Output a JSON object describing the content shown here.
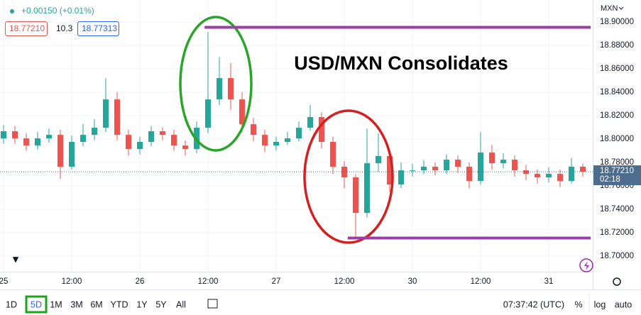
{
  "header": {
    "change": "+0.00150 (+0.01%)",
    "bid": "18.77210",
    "spread": "10.3",
    "ask": "18.77313"
  },
  "toolbar": {
    "ranges": [
      "1D",
      "5D",
      "1M",
      "3M",
      "6M",
      "YTD",
      "1Y",
      "5Y",
      "All"
    ],
    "active": 1,
    "clock": "07:37:42 (UTC)",
    "options": [
      "%",
      "log",
      "auto"
    ]
  },
  "chart_data": {
    "type": "candlestick",
    "currency": "MXN",
    "annotation": "USD/MXN Consolidates",
    "up_color": "#26a69a",
    "down_color": "#ef5350",
    "grid": true,
    "x": [
      0,
      2,
      4,
      6,
      8,
      10,
      12,
      14,
      16,
      18,
      20,
      22,
      24,
      26,
      28,
      30,
      32,
      34,
      36,
      38,
      40,
      42,
      44,
      46,
      48,
      50,
      52,
      54,
      56,
      58,
      60,
      62,
      64,
      66,
      68,
      70,
      72,
      74,
      76,
      78,
      80,
      82,
      84,
      86,
      88,
      90,
      92,
      94,
      96,
      98,
      100,
      102
    ],
    "open": [
      18.8005,
      18.8067,
      18.8006,
      18.7945,
      18.8006,
      18.8036,
      18.7764,
      18.7976,
      18.8036,
      18.8097,
      18.8339,
      18.8036,
      18.7915,
      18.7976,
      18.8067,
      18.8036,
      18.7945,
      18.7915,
      18.8097,
      18.8339,
      18.8521,
      18.8339,
      18.8127,
      18.8036,
      18.7945,
      18.7976,
      18.8006,
      18.8097,
      18.8188,
      18.7976,
      18.7764,
      18.7673,
      18.737,
      18.7794,
      18.7855,
      18.7612,
      18.7733,
      18.7733,
      18.7764,
      18.7733,
      18.7824,
      18.7764,
      18.7642,
      18.7885,
      18.7794,
      18.7824,
      18.7733,
      18.7703,
      18.7673,
      18.7703,
      18.7642,
      18.7764
    ],
    "high": [
      18.812,
      18.811,
      18.805,
      18.806,
      18.809,
      18.808,
      18.803,
      18.813,
      18.817,
      18.852,
      18.84,
      18.808,
      18.802,
      18.811,
      18.81,
      18.808,
      18.799,
      18.815,
      18.8915,
      18.87,
      18.865,
      18.84,
      18.818,
      18.808,
      18.802,
      18.806,
      18.815,
      18.829,
      18.823,
      18.802,
      18.781,
      18.77,
      18.809,
      18.805,
      18.79,
      18.78,
      18.779,
      18.782,
      18.78,
      18.787,
      18.786,
      18.78,
      18.806,
      18.795,
      18.788,
      18.786,
      18.778,
      18.774,
      18.776,
      18.774,
      18.784,
      18.779
    ],
    "low": [
      18.796,
      18.796,
      18.79,
      18.791,
      18.797,
      18.766,
      18.774,
      18.794,
      18.799,
      18.806,
      18.799,
      18.786,
      18.787,
      18.794,
      18.799,
      18.79,
      18.786,
      18.788,
      18.805,
      18.829,
      18.825,
      18.806,
      18.798,
      18.789,
      18.79,
      18.795,
      18.798,
      18.807,
      18.792,
      18.77,
      18.758,
      18.7158,
      18.733,
      18.772,
      18.755,
      18.758,
      18.768,
      18.77,
      18.769,
      18.77,
      18.771,
      18.758,
      18.761,
      18.774,
      18.775,
      18.768,
      18.765,
      18.762,
      18.763,
      18.759,
      18.762,
      18.768
    ],
    "close": [
      18.8067,
      18.8006,
      18.7945,
      18.8006,
      18.8036,
      18.7764,
      18.7976,
      18.8036,
      18.8097,
      18.8339,
      18.8036,
      18.7915,
      18.7976,
      18.8067,
      18.8036,
      18.7945,
      18.7915,
      18.8097,
      18.8339,
      18.8521,
      18.8339,
      18.8127,
      18.8036,
      18.7945,
      18.7976,
      18.8006,
      18.8097,
      18.8188,
      18.7976,
      18.7764,
      18.7673,
      18.737,
      18.7794,
      18.7855,
      18.7612,
      18.7733,
      18.7733,
      18.7764,
      18.7733,
      18.7824,
      18.7764,
      18.7642,
      18.7885,
      18.7794,
      18.7824,
      18.7733,
      18.7703,
      18.7673,
      18.7703,
      18.7642,
      18.7764,
      18.7721
    ],
    "xlim": [
      -0.625,
      103.75
    ],
    "xticks": [
      {
        "value": 0,
        "label": "25"
      },
      {
        "value": 12,
        "label": "12:00"
      },
      {
        "value": 24,
        "label": "26"
      },
      {
        "value": 36,
        "label": "12:00"
      },
      {
        "value": 48,
        "label": "27"
      },
      {
        "value": 60,
        "label": "12:00"
      },
      {
        "value": 72,
        "label": "30"
      },
      {
        "value": 84,
        "label": "12:00"
      },
      {
        "value": 96,
        "label": "31"
      }
    ],
    "ylim": [
      18.6867,
      18.9188
    ],
    "yticks": [
      {
        "value": 18.7,
        "label": "18.70000"
      },
      {
        "value": 18.72,
        "label": "18.72000"
      },
      {
        "value": 18.74,
        "label": "18.74000"
      },
      {
        "value": 18.76,
        "label": "18.76000"
      },
      {
        "value": 18.78,
        "label": "18.78000"
      },
      {
        "value": 18.8,
        "label": "18.80000"
      },
      {
        "value": 18.82,
        "label": "18.82000"
      },
      {
        "value": 18.84,
        "label": "18.84000"
      },
      {
        "value": 18.86,
        "label": "18.86000"
      },
      {
        "value": 18.88,
        "label": "18.88000"
      },
      {
        "value": 18.9,
        "label": "18.90000"
      }
    ],
    "last_price": {
      "value": 18.7721,
      "label": "18.77210",
      "countdown": "02:18",
      "color": "#4e6d8c"
    },
    "levels": [
      {
        "value": 18.8955,
        "from": 35.4,
        "to": 103.4,
        "color": "#9b3fa6"
      },
      {
        "value": 18.7155,
        "from": 60.6,
        "to": 103.4,
        "color": "#9b3fa6"
      }
    ]
  }
}
